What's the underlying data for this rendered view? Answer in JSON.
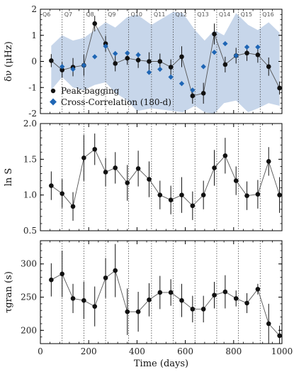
{
  "chart_data": [
    {
      "type": "line",
      "ylabel": "δν (μHz)",
      "ylim": [
        -2,
        2
      ],
      "yticks": [
        -2,
        -1,
        0,
        1,
        2
      ],
      "xlim": [
        0,
        1000
      ],
      "quarters": [
        "Q6",
        "Q7",
        "Q8",
        "Q9",
        "Q10",
        "Q11",
        "Q12",
        "Q13",
        "Q14",
        "Q15",
        "Q16"
      ],
      "quarter_boundaries": [
        90,
        180,
        270,
        365,
        460,
        550,
        640,
        730,
        820,
        910
      ],
      "band": {
        "x": [
          45,
          90,
          135,
          180,
          225,
          270,
          310,
          360,
          400,
          460,
          550,
          590,
          640,
          680,
          720,
          760,
          810,
          860,
          900,
          945,
          990
        ],
        "lo": [
          -1.1,
          -0.6,
          -1.0,
          -1.1,
          -0.9,
          -0.8,
          -1.2,
          -1.5,
          -1.9,
          -1.8,
          -1.9,
          -1.95,
          -1.7,
          -1.95,
          -2.0,
          -1.6,
          -1.5,
          -1.95,
          -1.8,
          -1.6,
          -1.7
        ],
        "hi": [
          0.6,
          1.0,
          0.8,
          0.9,
          1.2,
          1.5,
          1.3,
          1.7,
          1.8,
          1.4,
          1.9,
          1.85,
          1.2,
          0.8,
          1.2,
          1.0,
          1.85,
          1.4,
          1.2,
          1.5,
          1.1
        ]
      },
      "series": [
        {
          "name": "Peak-bagging",
          "x": [
            45,
            90,
            135,
            180,
            225,
            270,
            310,
            360,
            405,
            450,
            495,
            540,
            585,
            630,
            675,
            720,
            765,
            810,
            855,
            900,
            945,
            990
          ],
          "y": [
            0.03,
            -0.33,
            -0.22,
            -0.15,
            1.45,
            0.68,
            -0.08,
            0.12,
            0.05,
            0.0,
            0.0,
            -0.22,
            0.18,
            -1.32,
            -1.22,
            1.05,
            -0.12,
            0.22,
            0.32,
            0.25,
            -0.2,
            -1.02
          ],
          "err": [
            0.25,
            0.3,
            0.35,
            0.4,
            0.3,
            0.3,
            0.3,
            0.25,
            0.3,
            0.35,
            0.3,
            0.3,
            0.4,
            0.3,
            0.4,
            0.4,
            0.3,
            0.3,
            0.3,
            0.3,
            0.35,
            0.25
          ]
        },
        {
          "name": "Cross-Correlation (180-d)",
          "x": [
            90,
            135,
            180,
            225,
            270,
            310,
            360,
            405,
            450,
            495,
            540,
            585,
            630,
            675,
            720,
            765,
            810,
            855,
            900
          ],
          "y": [
            -0.2,
            -0.3,
            -0.15,
            0.18,
            0.58,
            0.3,
            0.32,
            0.25,
            -0.42,
            -0.3,
            -0.6,
            -0.85,
            -1.1,
            -0.2,
            0.35,
            0.68,
            0.22,
            0.55,
            0.55
          ]
        }
      ]
    },
    {
      "type": "line",
      "ylabel": "ln S",
      "ylim": [
        0.5,
        2.0
      ],
      "yticks": [
        0.5,
        1.0,
        1.5,
        2.0
      ],
      "xlim": [
        0,
        1000
      ],
      "series": [
        {
          "name": "",
          "x": [
            45,
            90,
            135,
            180,
            225,
            270,
            310,
            360,
            405,
            450,
            495,
            540,
            585,
            630,
            675,
            720,
            765,
            810,
            855,
            900,
            945,
            990
          ],
          "y": [
            1.13,
            1.02,
            0.84,
            1.52,
            1.64,
            1.32,
            1.38,
            1.17,
            1.37,
            1.22,
            1.0,
            0.93,
            1.0,
            0.85,
            1.0,
            1.38,
            1.55,
            1.2,
            0.99,
            1.01,
            1.47,
            1.0
          ],
          "err": [
            0.2,
            0.2,
            0.2,
            0.32,
            0.22,
            0.2,
            0.22,
            0.25,
            0.25,
            0.25,
            0.2,
            0.2,
            0.25,
            0.2,
            0.2,
            0.25,
            0.25,
            0.2,
            0.2,
            0.2,
            0.2,
            0.25
          ]
        }
      ]
    },
    {
      "type": "line",
      "ylabel": "τgran (s)",
      "xlabel": "Time (days)",
      "ylim": [
        180,
        335
      ],
      "yticks": [
        200,
        250,
        300
      ],
      "xlim": [
        0,
        1000
      ],
      "xticks": [
        0,
        200,
        400,
        600,
        800,
        1000
      ],
      "series": [
        {
          "name": "",
          "x": [
            45,
            90,
            135,
            180,
            225,
            270,
            310,
            360,
            405,
            450,
            495,
            540,
            585,
            630,
            675,
            720,
            765,
            810,
            855,
            900,
            945,
            990
          ],
          "y": [
            276,
            285,
            248,
            245,
            236,
            279,
            290,
            228,
            228,
            246,
            257,
            257,
            245,
            232,
            232,
            253,
            258,
            248,
            241,
            262,
            210,
            192
          ],
          "err": [
            25,
            35,
            22,
            28,
            30,
            30,
            40,
            35,
            30,
            25,
            25,
            20,
            25,
            20,
            20,
            20,
            25,
            12,
            15,
            8,
            30,
            15
          ]
        }
      ]
    }
  ],
  "legend": {
    "position": "lower-left",
    "entries": [
      "Peak-bagging",
      "Cross-Correlation (180-d)"
    ]
  },
  "colors": {
    "band": "#c7d6ea",
    "peak_bagging": "#111111",
    "cross_correlation": "#1f66b5"
  }
}
